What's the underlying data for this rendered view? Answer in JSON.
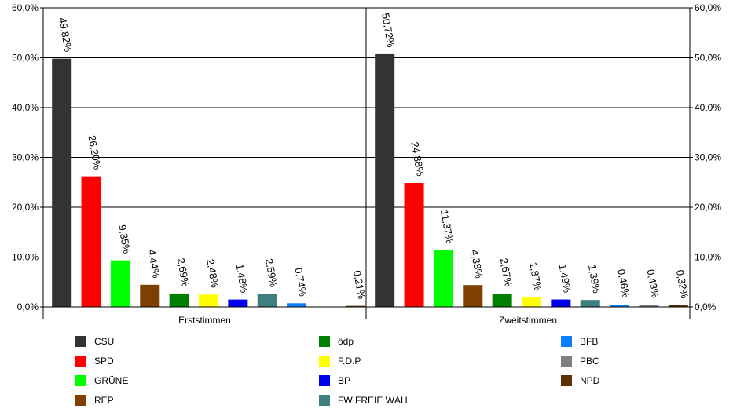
{
  "chart_data": {
    "type": "bar",
    "groups": [
      "Erststimmen",
      "Zweitstimmen"
    ],
    "ylim": [
      0,
      60
    ],
    "y_ticks": [
      "0,0%",
      "10,0%",
      "20,0%",
      "30,0%",
      "40,0%",
      "50,0%",
      "60,0%"
    ],
    "grid": true,
    "legend_position": "bottom",
    "series": [
      {
        "name": "CSU",
        "color": "#333333",
        "values": [
          49.82,
          50.72
        ],
        "labels": [
          "49,82%",
          "50,72%"
        ]
      },
      {
        "name": "SPD",
        "color": "#ff0000",
        "values": [
          26.2,
          24.88
        ],
        "labels": [
          "26,20%",
          "24,88%"
        ]
      },
      {
        "name": "GRÜNE",
        "color": "#00ff00",
        "values": [
          9.35,
          11.37
        ],
        "labels": [
          "9,35%",
          "11,37%"
        ]
      },
      {
        "name": "REP",
        "color": "#7f3f00",
        "values": [
          4.44,
          4.38
        ],
        "labels": [
          "4,44%",
          "4,38%"
        ]
      },
      {
        "name": "ödp",
        "color": "#007f00",
        "values": [
          2.69,
          2.67
        ],
        "labels": [
          "2,69%",
          "2,67%"
        ]
      },
      {
        "name": "F.D.P.",
        "color": "#ffff00",
        "values": [
          2.48,
          1.87
        ],
        "labels": [
          "2,48%",
          "1,87%"
        ]
      },
      {
        "name": "BP",
        "color": "#0000ee",
        "values": [
          1.48,
          1.49
        ],
        "labels": [
          "1,48%",
          "1,49%"
        ]
      },
      {
        "name": "FW FREIE WÄH",
        "color": "#3f7f7f",
        "values": [
          2.59,
          1.39
        ],
        "labels": [
          "2,59%",
          "1,39%"
        ]
      },
      {
        "name": "BFB",
        "color": "#0a7fff",
        "values": [
          0.74,
          0.46
        ],
        "labels": [
          "0,74%",
          "0,46%"
        ]
      },
      {
        "name": "PBC",
        "color": "#7f7f7f",
        "values": [
          null,
          0.43
        ],
        "labels": [
          null,
          "0,43%"
        ]
      },
      {
        "name": "NPD",
        "color": "#5f3000",
        "values": [
          0.21,
          0.32
        ],
        "labels": [
          "0,21%",
          "0,32%"
        ]
      }
    ]
  }
}
